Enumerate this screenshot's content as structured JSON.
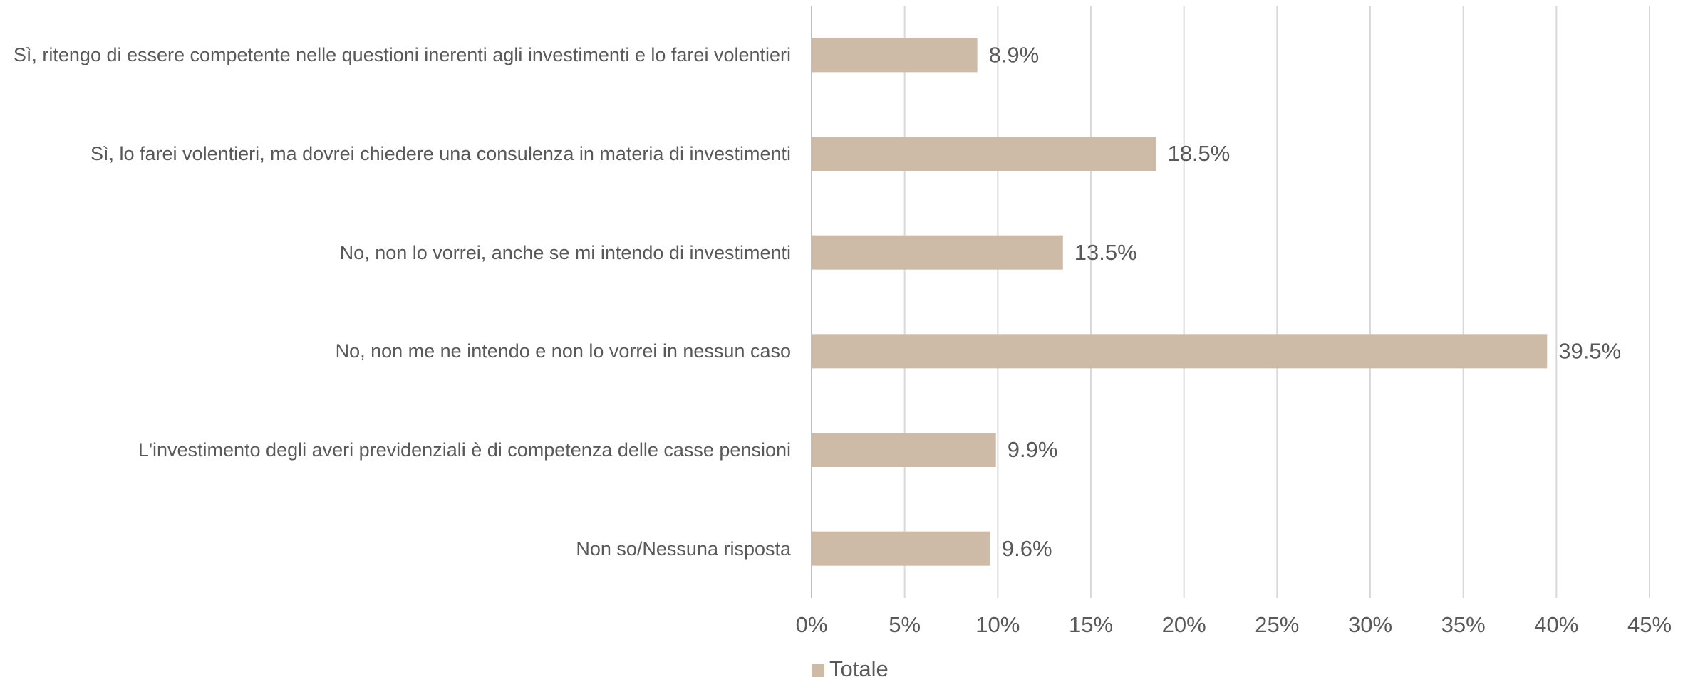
{
  "chart_data": {
    "type": "bar",
    "orientation": "horizontal",
    "categories": [
      "Sì, ritengo di essere competente nelle questioni inerenti agli investimenti e lo farei volentieri",
      "Sì, lo farei volentieri, ma dovrei chiedere una consulenza in materia di investimenti",
      "No, non lo vorrei, anche se mi intendo di investimenti",
      "No, non me ne intendo e non lo vorrei in nessun caso",
      "L'investimento degli averi previdenziali è di competenza delle casse pensioni",
      "Non so/Nessuna risposta"
    ],
    "series": [
      {
        "name": "Totale",
        "color": "#cdbaa7",
        "values": [
          8.9,
          18.5,
          13.5,
          39.5,
          9.9,
          9.6
        ],
        "value_labels": [
          "8.9%",
          "18.5%",
          "13.5%",
          "39.5%",
          "9.9%",
          "9.6%"
        ]
      }
    ],
    "xlim": [
      0,
      45
    ],
    "xticks": [
      {
        "value": 0,
        "label": "0%"
      },
      {
        "value": 5,
        "label": "5%"
      },
      {
        "value": 10,
        "label": "10%"
      },
      {
        "value": 15,
        "label": "15%"
      },
      {
        "value": 20,
        "label": "20%"
      },
      {
        "value": 25,
        "label": "25%"
      },
      {
        "value": 30,
        "label": "30%"
      },
      {
        "value": 35,
        "label": "35%"
      },
      {
        "value": 40,
        "label": "40%"
      },
      {
        "value": 45,
        "label": "45%"
      }
    ],
    "grid": true,
    "legend": "bottom"
  }
}
